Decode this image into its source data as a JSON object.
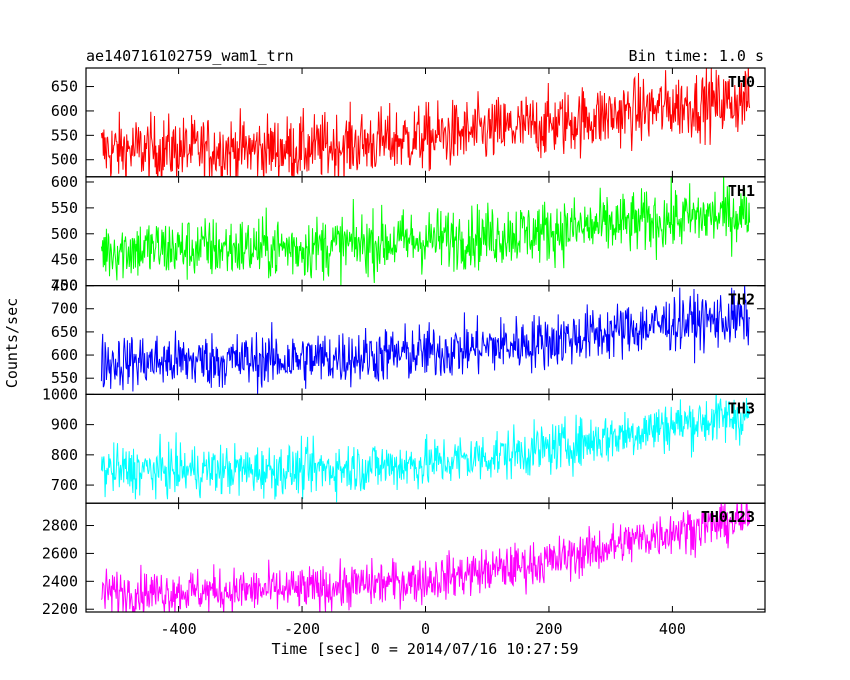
{
  "chart_data": {
    "type": "line",
    "title": "ae140716102759_wam1_trn",
    "subtitle": "Bin time: 1.0 s",
    "xlabel": "Time [sec] 0 = 2014/07/16 10:27:59",
    "ylabel": "Counts/sec",
    "xlim": [
      -550,
      550
    ],
    "xticks": [
      -400,
      -200,
      0,
      200,
      400
    ],
    "x_range": [
      -525,
      525
    ],
    "bin_time": 1.0,
    "grid": false,
    "panels": [
      {
        "name": "TH0",
        "color": "#ff0000",
        "ylim": [
          465,
          688
        ],
        "yticks": [
          500,
          550,
          600,
          650
        ],
        "trend": {
          "x": [
            -525,
            -200,
            0,
            200,
            400,
            525
          ],
          "y": [
            520,
            522,
            545,
            572,
            610,
            622
          ]
        },
        "noise": 34
      },
      {
        "name": "TH1",
        "color": "#00ff00",
        "ylim": [
          400,
          610
        ],
        "yticks": [
          400,
          450,
          500,
          550,
          600
        ],
        "trend": {
          "x": [
            -525,
            -200,
            0,
            200,
            400,
            525
          ],
          "y": [
            470,
            473,
            488,
            505,
            528,
            540
          ]
        },
        "noise": 30
      },
      {
        "name": "TH2",
        "color": "#0000ff",
        "ylim": [
          515,
          750
        ],
        "yticks": [
          550,
          600,
          650,
          700,
          750
        ],
        "trend": {
          "x": [
            -525,
            -200,
            0,
            200,
            400,
            525
          ],
          "y": [
            585,
            590,
            605,
            630,
            670,
            680
          ]
        },
        "noise": 30
      },
      {
        "name": "TH3",
        "color": "#00ffff",
        "ylim": [
          640,
          1000
        ],
        "yticks": [
          700,
          800,
          900,
          1000
        ],
        "trend": {
          "x": [
            -525,
            -200,
            0,
            200,
            400,
            525
          ],
          "y": [
            748,
            750,
            770,
            820,
            900,
            930
          ]
        },
        "noise": 42
      },
      {
        "name": "TH0123",
        "color": "#ff00ff",
        "ylim": [
          2180,
          2960
        ],
        "yticks": [
          2200,
          2400,
          2600,
          2800
        ],
        "trend": {
          "x": [
            -525,
            -200,
            0,
            200,
            400,
            525
          ],
          "y": [
            2320,
            2340,
            2410,
            2540,
            2760,
            2840
          ]
        },
        "noise": 80
      }
    ]
  }
}
